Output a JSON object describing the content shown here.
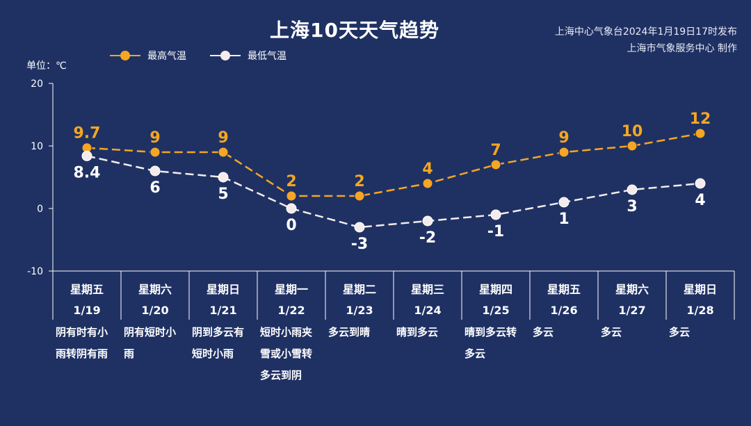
{
  "header": {
    "title": "上海10天天气趋势",
    "source_line1": "上海中心气象台2024年1月19日17时发布",
    "source_line2": "上海市气象服务中心 制作"
  },
  "unit_label": "单位：℃",
  "colors": {
    "high": "#f5a623",
    "low": "#f4ecec",
    "axis": "#ffffff",
    "background": "#1f3163"
  },
  "chart_data": {
    "type": "line",
    "title": "上海10天天气趋势",
    "ylabel": "单位：℃",
    "ylim": [
      -10,
      20
    ],
    "yticks": [
      -10,
      0,
      10,
      20
    ],
    "legend_position": "top-left",
    "grid": false,
    "categories": [
      "星期五 1/19",
      "星期六 1/20",
      "星期日 1/21",
      "星期一 1/22",
      "星期二 1/23",
      "星期三 1/24",
      "星期四 1/25",
      "星期五 1/26",
      "星期六 1/27",
      "星期日 1/28"
    ],
    "weekdays": [
      "星期五",
      "星期六",
      "星期日",
      "星期一",
      "星期二",
      "星期三",
      "星期四",
      "星期五",
      "星期六",
      "星期日"
    ],
    "dates": [
      "1/19",
      "1/20",
      "1/21",
      "1/22",
      "1/23",
      "1/24",
      "1/25",
      "1/26",
      "1/27",
      "1/28"
    ],
    "weather": [
      [
        "阴有时有小",
        "雨转阴有雨"
      ],
      [
        "阴有短时小",
        "雨"
      ],
      [
        "阴到多云有",
        "短时小雨"
      ],
      [
        "短时小雨夹",
        "雪或小雪转",
        "多云到阴"
      ],
      [
        "多云到晴"
      ],
      [
        "晴到多云"
      ],
      [
        "晴到多云转",
        "多云"
      ],
      [
        "多云"
      ],
      [
        "多云"
      ],
      [
        "多云"
      ]
    ],
    "series": [
      {
        "name": "最高气温",
        "values": [
          9.7,
          9,
          9,
          2,
          2,
          4,
          7,
          9,
          10,
          12
        ]
      },
      {
        "name": "最低气温",
        "values": [
          8.4,
          6,
          5,
          0,
          -3,
          -2,
          -1,
          1,
          3,
          4
        ]
      }
    ]
  }
}
